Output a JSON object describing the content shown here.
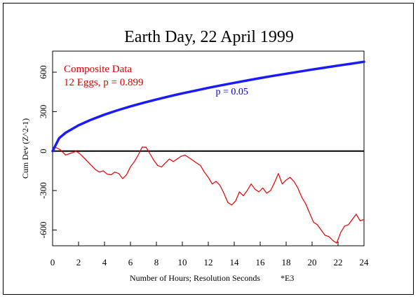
{
  "chart_data": {
    "type": "line",
    "title": "Earth Day, 22 April 1999",
    "xlabel": "Number of Hours; Resolution Seconds",
    "xlabel_note": "*E3",
    "ylabel": "Cum Dev (Z^2-1)",
    "xlim": [
      0,
      24
    ],
    "ylim": [
      -720,
      760
    ],
    "x_ticks": [
      0,
      2,
      4,
      6,
      8,
      10,
      12,
      14,
      16,
      18,
      20,
      22,
      24
    ],
    "y_ticks": [
      -600,
      -300,
      0,
      300,
      600
    ],
    "legend": {
      "line1": "Composite Data",
      "line2": "12 Eggs, p = 0.899",
      "position": "top-left"
    },
    "annotations": [
      {
        "text": "p = 0.05",
        "x": 13.0,
        "y": 430,
        "color": "#0000cc"
      }
    ],
    "reference_line": {
      "y": 0,
      "color": "#000000"
    },
    "series": [
      {
        "name": "p = 0.05",
        "color": "#1a1aff",
        "x": [
          0,
          0.5,
          1,
          2,
          3,
          4,
          5,
          6,
          7,
          8,
          9,
          10,
          11,
          12,
          13,
          14,
          15,
          16,
          17,
          18,
          19,
          20,
          21,
          22,
          23,
          24
        ],
        "y": [
          0,
          98,
          139,
          196,
          240,
          277,
          310,
          340,
          367,
          392,
          416,
          439,
          460,
          481,
          500,
          519,
          537,
          555,
          572,
          588,
          604,
          620,
          635,
          650,
          664,
          679
        ]
      },
      {
        "name": "Composite Data",
        "color": "#e00000",
        "x": [
          0,
          0.2,
          0.4,
          0.6,
          0.8,
          1.0,
          1.3,
          1.6,
          1.8,
          2.1,
          2.4,
          2.7,
          3.0,
          3.3,
          3.6,
          3.9,
          4.2,
          4.5,
          4.8,
          5.1,
          5.4,
          5.7,
          6.0,
          6.3,
          6.6,
          6.9,
          7.2,
          7.5,
          7.8,
          8.1,
          8.4,
          8.7,
          9.0,
          9.3,
          9.6,
          9.9,
          10.2,
          10.5,
          10.8,
          11.1,
          11.4,
          11.7,
          12.0,
          12.3,
          12.6,
          12.9,
          13.2,
          13.5,
          13.8,
          14.1,
          14.4,
          14.7,
          15.0,
          15.3,
          15.6,
          15.9,
          16.2,
          16.5,
          16.8,
          17.1,
          17.4,
          17.7,
          18.0,
          18.3,
          18.6,
          18.9,
          19.2,
          19.5,
          19.8,
          20.1,
          20.4,
          20.7,
          21.0,
          21.3,
          21.6,
          21.9,
          22.2,
          22.5,
          22.8,
          23.1,
          23.4,
          23.7,
          24.0
        ],
        "y": [
          0,
          30,
          20,
          10,
          -10,
          -30,
          -20,
          -10,
          0,
          -20,
          -50,
          -80,
          -110,
          -140,
          -160,
          -150,
          -175,
          -180,
          -160,
          -170,
          -210,
          -180,
          -120,
          -80,
          -30,
          30,
          30,
          -20,
          -70,
          -110,
          -120,
          -90,
          -60,
          -80,
          -60,
          -40,
          -30,
          -50,
          -70,
          -90,
          -110,
          -160,
          -200,
          -250,
          -230,
          -260,
          -320,
          -390,
          -410,
          -380,
          -310,
          -340,
          -300,
          -250,
          -290,
          -310,
          -280,
          -320,
          -300,
          -240,
          -170,
          -250,
          -220,
          -200,
          -230,
          -280,
          -350,
          -400,
          -470,
          -540,
          -560,
          -600,
          -640,
          -650,
          -680,
          -700,
          -620,
          -570,
          -560,
          -520,
          -480,
          -530,
          -520
        ]
      }
    ]
  }
}
